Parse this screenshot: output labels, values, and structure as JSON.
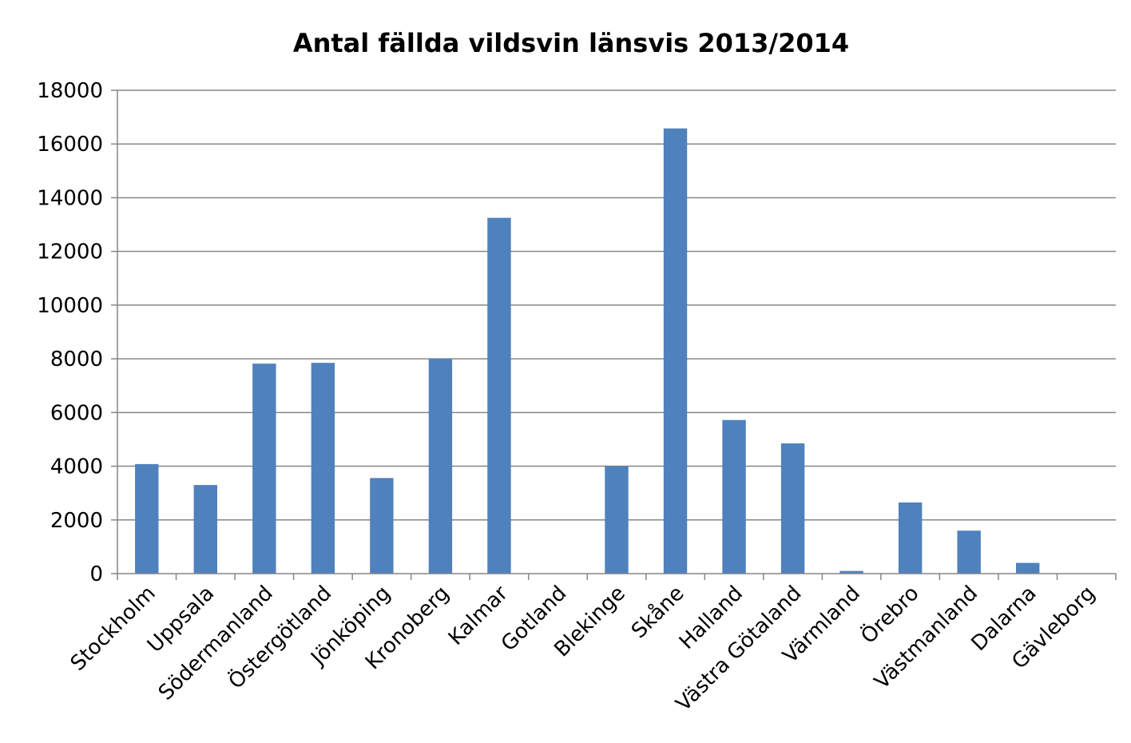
{
  "chart_data": {
    "type": "bar",
    "title": "Antal fällda vildsvin länsvis 2013/2014",
    "xlabel": "",
    "ylabel": "",
    "ylim": [
      0,
      18000
    ],
    "yticks": [
      "0",
      "2000",
      "4000",
      "6000",
      "8000",
      "10000",
      "12000",
      "14000",
      "16000",
      "18000"
    ],
    "grid": true,
    "legend": "none",
    "bar_color": "#4F81BD",
    "categories": [
      "Stockholm",
      "Uppsala",
      "Södermanland",
      "Östergötland",
      "Jönköping",
      "Kronoberg",
      "Kalmar",
      "Gotland",
      "Blekinge",
      "Skåne",
      "Halland",
      "Västra Götaland",
      "Värmland",
      "Örebro",
      "Västmanland",
      "Dalarna",
      "Gävleborg"
    ],
    "values": [
      4080,
      3300,
      7820,
      7850,
      3560,
      8000,
      13250,
      0,
      4000,
      16580,
      5720,
      4850,
      100,
      2650,
      1600,
      400,
      0
    ]
  }
}
